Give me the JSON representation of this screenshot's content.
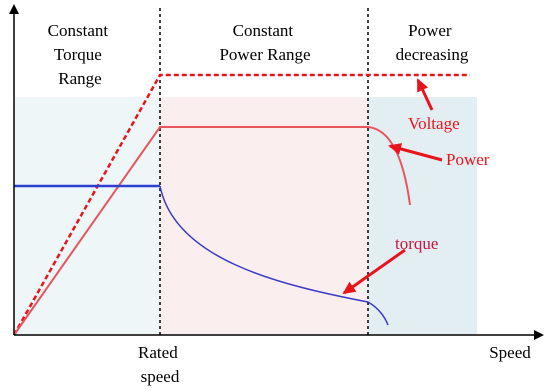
{
  "regions": [
    {
      "label": [
        "Constant",
        "Torque",
        "Range"
      ]
    },
    {
      "label": [
        "Constant",
        "Power Range"
      ]
    },
    {
      "label": [
        "Power",
        "decreasing"
      ]
    }
  ],
  "curves": {
    "voltage": "Voltage",
    "power": "Power",
    "torque": "torque"
  },
  "x_axis": {
    "marker": [
      "Rated",
      "speed"
    ],
    "label": "Speed"
  }
}
